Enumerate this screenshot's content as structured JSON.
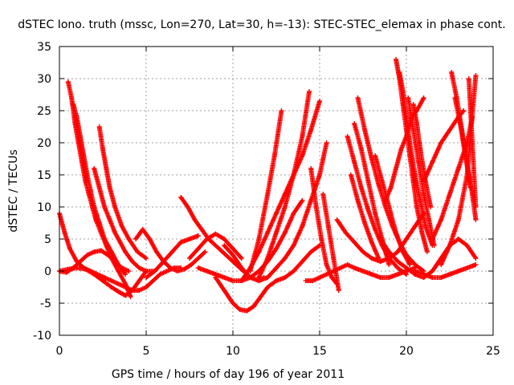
{
  "chart_data": {
    "type": "scatter",
    "title": "dSTEC Iono. truth (mssc, Lon=270, Lat=30, h=-13): STEC-STEC_elemax in phase cont.",
    "xlabel": "GPS time / hours of day 196 of year 2011",
    "ylabel": "dSTEC  / TECUs",
    "xlim": [
      0,
      25
    ],
    "ylim": [
      -10,
      35
    ],
    "xticks": [
      0,
      5,
      10,
      15,
      20,
      25
    ],
    "yticks": [
      -10,
      -5,
      0,
      5,
      10,
      15,
      20,
      25,
      30,
      35
    ],
    "grid": true,
    "marker": "plus",
    "marker_color": "#ff0000",
    "series": [
      {
        "x": [
          0.0,
          0.3,
          0.6,
          1.0,
          1.4,
          1.8,
          2.2,
          2.6,
          3.0,
          3.4,
          3.8,
          4.2,
          4.6,
          5.0,
          5.4,
          5.8,
          6.2,
          6.6,
          7.0
        ],
        "y": [
          9,
          6,
          3.5,
          1.5,
          0.5,
          0,
          -0.5,
          -1,
          -1.5,
          -2,
          -2.5,
          -3,
          -3,
          -2.5,
          -1.5,
          -0.5,
          0,
          0.5,
          0.5
        ]
      },
      {
        "x": [
          0.5,
          0.7,
          0.9,
          1.1,
          1.3,
          1.5,
          1.7,
          1.9,
          2.1,
          2.4,
          2.7,
          3.0,
          3.4,
          3.8,
          4.1
        ],
        "y": [
          29.5,
          27,
          23,
          20,
          17,
          14,
          12,
          10,
          8,
          6,
          4,
          2,
          0,
          -2,
          -4
        ]
      },
      {
        "x": [
          0.8,
          1.0,
          1.2,
          1.4,
          1.6,
          1.8,
          2.0,
          2.3,
          2.6,
          3.0,
          3.4,
          3.8
        ],
        "y": [
          26,
          24,
          21,
          18,
          15,
          12.5,
          10,
          7.5,
          5,
          3,
          1,
          -0.5
        ]
      },
      {
        "x": [
          2.0,
          2.3,
          2.6,
          2.9,
          3.2,
          3.5,
          3.8,
          4.2,
          4.6,
          5.0,
          5.5
        ],
        "y": [
          16,
          13,
          10,
          8,
          6,
          4.5,
          3,
          1.5,
          0.5,
          0,
          0
        ]
      },
      {
        "x": [
          2.3,
          2.5,
          2.7,
          2.9,
          3.2,
          3.6,
          4.0,
          4.5,
          5.0
        ],
        "y": [
          22.5,
          19,
          16,
          13,
          10,
          7,
          5,
          3,
          2
        ]
      },
      {
        "x": [
          0.0,
          0.5,
          1.0,
          1.5,
          2.0,
          2.5,
          3.0,
          3.4,
          3.8,
          4.2,
          4.6,
          5.0
        ],
        "y": [
          0,
          0.3,
          0.5,
          0.3,
          -0.5,
          -1.5,
          -2.5,
          -3.2,
          -3.8,
          -3,
          -1.5,
          0
        ]
      },
      {
        "x": [
          0.0,
          0.4,
          0.8,
          1.2,
          1.6,
          2.0,
          2.4,
          2.8,
          3.2,
          3.6,
          4.0
        ],
        "y": [
          0,
          -0.2,
          0.5,
          1.5,
          2.5,
          3,
          3.2,
          2.5,
          1.5,
          0.5,
          0
        ]
      },
      {
        "x": [
          4.4,
          4.8,
          5.2,
          5.6,
          6.0,
          6.4,
          6.8,
          7.2,
          7.6,
          8.0,
          8.4
        ],
        "y": [
          5,
          6.5,
          5,
          3,
          1.5,
          0.5,
          0,
          0.3,
          1,
          2,
          3
        ]
      },
      {
        "x": [
          5.0,
          5.5,
          6.0,
          6.5,
          7.0,
          7.5,
          8.0
        ],
        "y": [
          -1,
          0,
          1.5,
          3,
          4.5,
          5,
          5.5
        ]
      },
      {
        "x": [
          7.0,
          7.4,
          7.8,
          8.2,
          8.6,
          9.0,
          9.4,
          9.8,
          10.2,
          10.6
        ],
        "y": [
          11.5,
          10,
          8,
          6.5,
          5,
          4,
          3,
          2,
          1,
          0
        ]
      },
      {
        "x": [
          7.5,
          8.0,
          8.5,
          9.0,
          9.5,
          10.0,
          10.5
        ],
        "y": [
          2,
          3.5,
          5,
          5.8,
          5,
          3.5,
          2
        ]
      },
      {
        "x": [
          8.0,
          8.5,
          9.0,
          9.5,
          10.0,
          10.5,
          11.0,
          11.5,
          12.0,
          12.5,
          13.0,
          13.5,
          14.0
        ],
        "y": [
          0.5,
          0,
          -0.5,
          -1,
          -1.5,
          -1.5,
          -1,
          0,
          1.5,
          3.5,
          6,
          9,
          11
        ]
      },
      {
        "x": [
          9.0,
          9.5,
          10.0,
          10.4,
          10.8,
          11.2,
          11.6,
          12.0,
          12.5,
          13.0,
          13.5,
          14.0,
          14.5,
          15.0
        ],
        "y": [
          -1,
          -3,
          -5,
          -6,
          -6.2,
          -5.5,
          -4,
          -2.5,
          -1.5,
          -1,
          0,
          1.5,
          3,
          4
        ]
      },
      {
        "x": [
          9.5,
          10.0,
          10.5,
          11.0,
          11.5,
          11.8
        ],
        "y": [
          4,
          2.5,
          0.5,
          -1,
          -1.5,
          -1
        ]
      },
      {
        "x": [
          10.5,
          11.0,
          11.5,
          12.0,
          12.5,
          13.0,
          13.5,
          14.0,
          14.5,
          15.0
        ],
        "y": [
          -1.5,
          0.5,
          3,
          6,
          9,
          12,
          15,
          18,
          22,
          26.5
        ]
      },
      {
        "x": [
          11.0,
          11.5,
          12.0,
          12.4,
          12.8
        ],
        "y": [
          0,
          5,
          12,
          18,
          25
        ]
      },
      {
        "x": [
          11.5,
          12.0,
          12.5,
          13.0,
          13.5,
          14.0,
          14.4
        ],
        "y": [
          -1,
          2,
          6,
          10,
          15,
          21,
          28
        ]
      },
      {
        "x": [
          11.5,
          12.0,
          12.5,
          13.0,
          13.5,
          14.0,
          14.5,
          15.0,
          15.4
        ],
        "y": [
          -1.5,
          -1,
          0.5,
          2,
          4,
          7,
          11,
          15,
          20
        ]
      },
      {
        "x": [
          14.2,
          14.6,
          15.0,
          15.4,
          15.8,
          16.2,
          16.6,
          17.0,
          17.5,
          18.0,
          18.5,
          19.0,
          19.5,
          20.0,
          20.5
        ],
        "y": [
          -1.5,
          -1.5,
          -1,
          -0.5,
          0,
          0.5,
          1,
          0.5,
          0,
          -0.5,
          -1,
          -1,
          -0.5,
          0,
          0.5
        ]
      },
      {
        "x": [
          14.5,
          14.8,
          15.1,
          15.4,
          15.7,
          16.0
        ],
        "y": [
          16,
          10,
          5,
          1,
          -1,
          -2
        ]
      },
      {
        "x": [
          15.2,
          15.5,
          15.8,
          16.1
        ],
        "y": [
          12,
          7,
          2,
          -3
        ]
      },
      {
        "x": [
          16.6,
          17.0,
          17.4,
          17.8,
          18.2,
          18.6,
          19.0,
          19.5,
          20.0
        ],
        "y": [
          21,
          17,
          13,
          9.5,
          6.5,
          4,
          2,
          0.5,
          -0.5
        ]
      },
      {
        "x": [
          17.0,
          17.4,
          17.8,
          18.2,
          18.6,
          19.0
        ],
        "y": [
          23,
          19,
          14,
          9,
          5,
          1
        ]
      },
      {
        "x": [
          16.8,
          17.2,
          17.6,
          18.0,
          18.4
        ],
        "y": [
          15,
          11,
          7.5,
          4.5,
          2
        ]
      },
      {
        "x": [
          17.2,
          17.6,
          18.0,
          18.4,
          18.8,
          19.2,
          19.6,
          20.0,
          20.5,
          21.0
        ],
        "y": [
          27,
          22,
          17.5,
          13.5,
          10,
          7,
          4.5,
          2.5,
          1,
          0
        ]
      },
      {
        "x": [
          18.2,
          18.6,
          19.0,
          19.4,
          19.8,
          20.2
        ],
        "y": [
          18,
          14,
          10,
          6,
          3,
          1
        ]
      },
      {
        "x": [
          18.8,
          19.1,
          19.4,
          19.7,
          20.0,
          20.3,
          20.6,
          21.0
        ],
        "y": [
          11,
          13,
          16,
          19,
          21,
          24,
          25,
          27
        ]
      },
      {
        "x": [
          19.4,
          19.6,
          19.8,
          20.0,
          20.2,
          20.4,
          20.6,
          20.9,
          21.2
        ],
        "y": [
          33,
          30,
          26,
          22,
          18,
          14,
          10,
          6,
          3
        ]
      },
      {
        "x": [
          19.6,
          19.8,
          20.0,
          20.2,
          20.5,
          20.8,
          21.1,
          21.5
        ],
        "y": [
          31,
          28,
          24,
          20,
          15,
          11,
          7,
          4
        ]
      },
      {
        "x": [
          20.1,
          20.4,
          20.7,
          21.0,
          21.3,
          21.6
        ],
        "y": [
          27,
          22,
          17,
          12,
          8,
          4
        ]
      },
      {
        "x": [
          20.4,
          20.6,
          20.8,
          21.1,
          21.4
        ],
        "y": [
          26,
          23,
          19,
          14,
          10
        ]
      },
      {
        "x": [
          21.0,
          21.5,
          22.0,
          22.5,
          23.0,
          23.3
        ],
        "y": [
          14,
          17,
          20,
          22,
          24,
          25
        ]
      },
      {
        "x": [
          22.6,
          22.9,
          23.2,
          23.5,
          23.8,
          24.0
        ],
        "y": [
          31,
          27,
          22,
          17,
          12,
          8
        ]
      },
      {
        "x": [
          22.8,
          23.1,
          23.4,
          23.7
        ],
        "y": [
          27,
          23,
          18,
          13
        ]
      },
      {
        "x": [
          21.5,
          22.0,
          22.5,
          23.0,
          23.5,
          23.8
        ],
        "y": [
          5,
          8,
          12,
          16,
          20,
          24
        ]
      },
      {
        "x": [
          22.0,
          22.5,
          23.0,
          23.5,
          24.0
        ],
        "y": [
          1,
          4,
          8,
          15,
          30.5
        ]
      },
      {
        "x": [
          23.6,
          23.8,
          24.0
        ],
        "y": [
          30,
          20,
          10
        ]
      },
      {
        "x": [
          20.5,
          21.0,
          21.5,
          22.0,
          22.5,
          23.0,
          23.5,
          24.0
        ],
        "y": [
          0,
          -0.5,
          -1,
          -1,
          -0.5,
          0,
          0.5,
          1
        ]
      },
      {
        "x": [
          18.5,
          19.0,
          19.5,
          20.0,
          20.5,
          21.0,
          21.5,
          22.0,
          22.5,
          23.0,
          23.5,
          24.0
        ],
        "y": [
          5,
          3,
          1.5,
          0.5,
          -0.5,
          -1,
          0,
          2,
          4,
          5,
          4,
          2
        ]
      },
      {
        "x": [
          16.0,
          16.5,
          17.0,
          17.5,
          18.0,
          18.5,
          19.0,
          19.5,
          20.0,
          20.5,
          21.0
        ],
        "y": [
          8,
          6,
          4.5,
          3,
          2,
          1.5,
          2,
          3,
          5,
          7,
          9
        ]
      }
    ]
  }
}
